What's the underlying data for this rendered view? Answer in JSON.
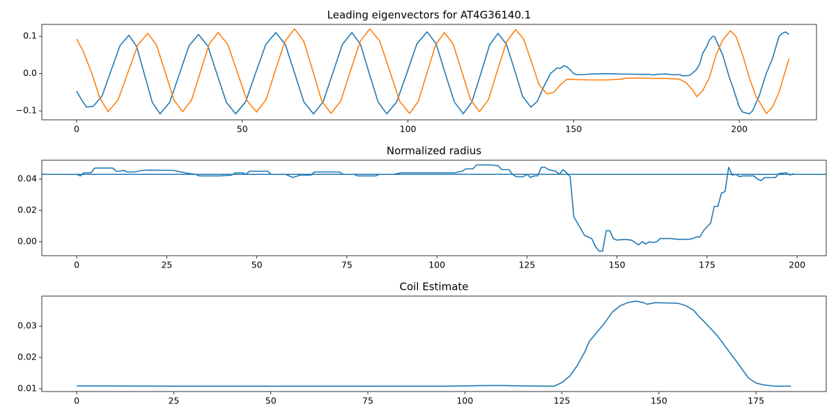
{
  "chart_data": [
    {
      "type": "line",
      "title": "Leading eigenvectors for AT4G36140.1",
      "xlim": [
        -10.5,
        223.3
      ],
      "ylim": [
        -0.124,
        0.132
      ],
      "xticks": [
        0,
        50,
        100,
        150,
        200
      ],
      "yticks": [
        {
          "value": -0.1,
          "label": "−0.1"
        },
        {
          "value": 0,
          "label": "0.0"
        },
        0.1
      ],
      "series": [
        {
          "color": "#1f77b4",
          "x": [
            0,
            1.5,
            3,
            5,
            7.7,
            10.4,
            13.1,
            15.8,
            18.15,
            20.5,
            22.85,
            25.2,
            28.1,
            31,
            33.9,
            36.8,
            39.6,
            42.4,
            45.2,
            48,
            51,
            54,
            57.1,
            60.1,
            63,
            65.8,
            68.6,
            71.5,
            74.4,
            77.3,
            80.2,
            83.1,
            85.7,
            88.3,
            91,
            93.6,
            96.6,
            99.7,
            102.7,
            105.8,
            108.5,
            111.2,
            114,
            116.7,
            119.3,
            122,
            124.6,
            127.2,
            129.7,
            132.2,
            134.6,
            137.1,
            139,
            141,
            143,
            145,
            146,
            147,
            148,
            149,
            150,
            151,
            153,
            155,
            160,
            163,
            170,
            173,
            174,
            175,
            178,
            180,
            182,
            183,
            185,
            187,
            188,
            189,
            190,
            191,
            192,
            192.5,
            195,
            197,
            198,
            200,
            201,
            203,
            204,
            206,
            208,
            210,
            212,
            213,
            214,
            215
          ],
          "values": [
            -0.047,
            -0.07,
            -0.09,
            -0.088,
            -0.06,
            0.008,
            0.075,
            0.103,
            0.072,
            -0.003,
            -0.077,
            -0.108,
            -0.077,
            -0.002,
            0.074,
            0.105,
            0.074,
            -0.002,
            -0.077,
            -0.108,
            -0.076,
            0.001,
            0.078,
            0.11,
            0.078,
            0.001,
            -0.076,
            -0.108,
            -0.076,
            0.001,
            0.078,
            0.11,
            0.078,
            0.001,
            -0.076,
            -0.108,
            -0.076,
            0.002,
            0.08,
            0.112,
            0.08,
            0.002,
            -0.076,
            -0.108,
            -0.076,
            0,
            0.076,
            0.108,
            0.079,
            0.009,
            -0.061,
            -0.09,
            -0.075,
            -0.035,
            0,
            0.015,
            0.014,
            0.021,
            0.018,
            0.01,
            0,
            -0.003,
            -0.003,
            -0.001,
            0,
            -0.001,
            -0.002,
            -0.002,
            -0.004,
            -0.002,
            -0.001,
            -0.003,
            -0.003,
            -0.006,
            -0.005,
            0.01,
            0.025,
            0.055,
            0.07,
            0.09,
            0.1,
            0.1,
            0.05,
            -0.01,
            -0.035,
            -0.09,
            -0.103,
            -0.108,
            -0.1,
            -0.06,
            -0.003,
            0.04,
            0.1,
            0.108,
            0.112,
            0.105
          ]
        },
        {
          "color": "#ff7f0e",
          "x": [
            0,
            2,
            4.5,
            7,
            9.5,
            12.5,
            15.5,
            18.5,
            21.5,
            24.1,
            26.75,
            29.4,
            32,
            34.7,
            37.35,
            40,
            42.7,
            45.6,
            48.5,
            51.4,
            54.3,
            57.2,
            60,
            62.9,
            65.8,
            68.55,
            71.3,
            74,
            76.8,
            79.7,
            82.65,
            85.6,
            88.5,
            91.5,
            94.5,
            97.5,
            100.5,
            103.1,
            105.75,
            108.4,
            111,
            113.65,
            116.3,
            118.95,
            121.6,
            124.3,
            127,
            129.8,
            132.5,
            134.9,
            137.25,
            139.6,
            142,
            144,
            146,
            148,
            150,
            155,
            160,
            164,
            166,
            170,
            175,
            178,
            180,
            182,
            184,
            186,
            187.2,
            189,
            191,
            193,
            195,
            197.3,
            199,
            201,
            203,
            205,
            208.2,
            210,
            212,
            214,
            215
          ],
          "values": [
            0.093,
            0.06,
            0.003,
            -0.065,
            -0.102,
            -0.071,
            0.003,
            0.077,
            0.108,
            0.077,
            0.003,
            -0.071,
            -0.102,
            -0.071,
            0.004,
            0.079,
            0.11,
            0.079,
            0.004,
            -0.072,
            -0.103,
            -0.07,
            0.009,
            0.087,
            0.12,
            0.087,
            0.007,
            -0.074,
            -0.107,
            -0.074,
            0.007,
            0.087,
            0.12,
            0.087,
            0.007,
            -0.074,
            -0.107,
            -0.075,
            0.002,
            0.078,
            0.11,
            0.079,
            0.004,
            -0.071,
            -0.102,
            -0.07,
            0.008,
            0.086,
            0.118,
            0.093,
            0.032,
            -0.03,
            -0.055,
            -0.05,
            -0.03,
            -0.015,
            -0.016,
            -0.017,
            -0.017,
            -0.015,
            -0.012,
            -0.012,
            -0.013,
            -0.013,
            -0.014,
            -0.015,
            -0.025,
            -0.045,
            -0.062,
            -0.045,
            -0.01,
            0.05,
            0.09,
            0.115,
            0.1,
            0.05,
            -0.01,
            -0.06,
            -0.107,
            -0.09,
            -0.05,
            0.01,
            0.04
          ]
        }
      ]
    },
    {
      "type": "line",
      "title": "Normalized radius",
      "xlim": [
        -9.7,
        208.1
      ],
      "ylim": [
        -0.0089,
        0.052
      ],
      "xticks": [
        0,
        25,
        50,
        75,
        100,
        125,
        150,
        175,
        200
      ],
      "yticks": [
        {
          "value": 0,
          "label": "0.00"
        },
        0.02,
        0.04
      ],
      "hline": {
        "value": 0.043,
        "color": "#1f77b4"
      },
      "series": [
        {
          "color": "#1f77b4",
          "x": [
            0,
            1,
            2,
            4,
            5,
            7,
            10,
            11,
            12,
            13,
            14,
            16,
            18,
            20,
            27,
            30,
            33,
            34,
            40,
            43,
            44,
            46,
            47,
            48,
            53,
            54,
            58,
            60,
            62,
            65,
            66,
            73,
            74,
            77,
            78,
            83,
            84,
            88,
            90,
            100,
            105,
            107,
            108,
            110,
            111,
            115,
            117,
            118,
            120,
            121,
            122,
            124,
            125,
            126,
            127,
            128,
            129,
            130,
            131,
            133,
            134,
            135,
            136,
            137,
            138,
            139,
            140,
            141,
            142,
            143,
            144,
            145,
            146,
            147,
            148,
            149,
            150,
            152,
            154,
            156,
            157,
            158,
            159,
            160,
            161,
            162,
            165,
            167,
            170,
            171,
            172,
            173,
            174,
            176,
            177,
            178,
            179,
            180,
            181,
            182,
            183,
            184,
            185,
            188,
            189,
            190,
            191,
            194,
            195,
            197,
            198,
            199
          ],
          "values": [
            0.043,
            0.042,
            0.044,
            0.044,
            0.047,
            0.047,
            0.047,
            0.045,
            0.045,
            0.0455,
            0.0445,
            0.0445,
            0.0455,
            0.0457,
            0.0455,
            0.044,
            0.043,
            0.042,
            0.042,
            0.0425,
            0.044,
            0.044,
            0.043,
            0.045,
            0.045,
            0.043,
            0.043,
            0.041,
            0.0425,
            0.0425,
            0.0445,
            0.0445,
            0.043,
            0.043,
            0.042,
            0.042,
            0.043,
            0.043,
            0.044,
            0.044,
            0.044,
            0.045,
            0.0465,
            0.0465,
            0.049,
            0.049,
            0.0485,
            0.046,
            0.046,
            0.043,
            0.0415,
            0.0415,
            0.043,
            0.041,
            0.042,
            0.042,
            0.0475,
            0.0475,
            0.046,
            0.045,
            0.043,
            0.046,
            0.044,
            0.0415,
            0.016,
            0.012,
            0.008,
            0.004,
            0.003,
            0.002,
            -0.003,
            -0.006,
            -0.006,
            0.007,
            0.007,
            0.002,
            0.001,
            0.0015,
            0.001,
            -0.002,
            0,
            -0.0015,
            0,
            -0.0005,
            0,
            0.002,
            0.002,
            0.0015,
            0.0015,
            0.002,
            0.003,
            0.003,
            0.007,
            0.012,
            0.0225,
            0.0225,
            0.031,
            0.032,
            0.0475,
            0.0425,
            0.043,
            0.0415,
            0.042,
            0.042,
            0.04,
            0.039,
            0.041,
            0.041,
            0.0435,
            0.044,
            0.0425,
            0.0435
          ]
        }
      ]
    },
    {
      "type": "line",
      "title": "Coil Estimate",
      "xlim": [
        -9,
        193.1
      ],
      "ylim": [
        0.0091,
        0.0396
      ],
      "xticks": [
        0,
        25,
        50,
        75,
        100,
        125,
        150,
        175
      ],
      "yticks": [
        0.01,
        0.02,
        0.03
      ],
      "series": [
        {
          "color": "#1f77b4",
          "x": [
            0,
            25,
            50,
            75,
            95,
            100,
            105,
            110,
            115,
            123,
            125,
            127,
            129,
            131,
            132,
            134,
            136,
            138,
            140,
            142,
            144,
            146,
            147,
            149,
            152,
            155,
            157,
            159,
            160,
            162,
            165,
            168,
            171,
            173,
            175,
            177,
            180,
            184
          ],
          "values": [
            0.0109,
            0.0108,
            0.0108,
            0.0108,
            0.0108,
            0.0109,
            0.011,
            0.011,
            0.0109,
            0.0108,
            0.012,
            0.014,
            0.0175,
            0.022,
            0.025,
            0.028,
            0.031,
            0.0345,
            0.0365,
            0.0375,
            0.038,
            0.0375,
            0.037,
            0.0375,
            0.0374,
            0.0373,
            0.0365,
            0.035,
            0.0335,
            0.031,
            0.027,
            0.022,
            0.017,
            0.0135,
            0.0118,
            0.0112,
            0.0108,
            0.0108
          ]
        }
      ]
    }
  ]
}
